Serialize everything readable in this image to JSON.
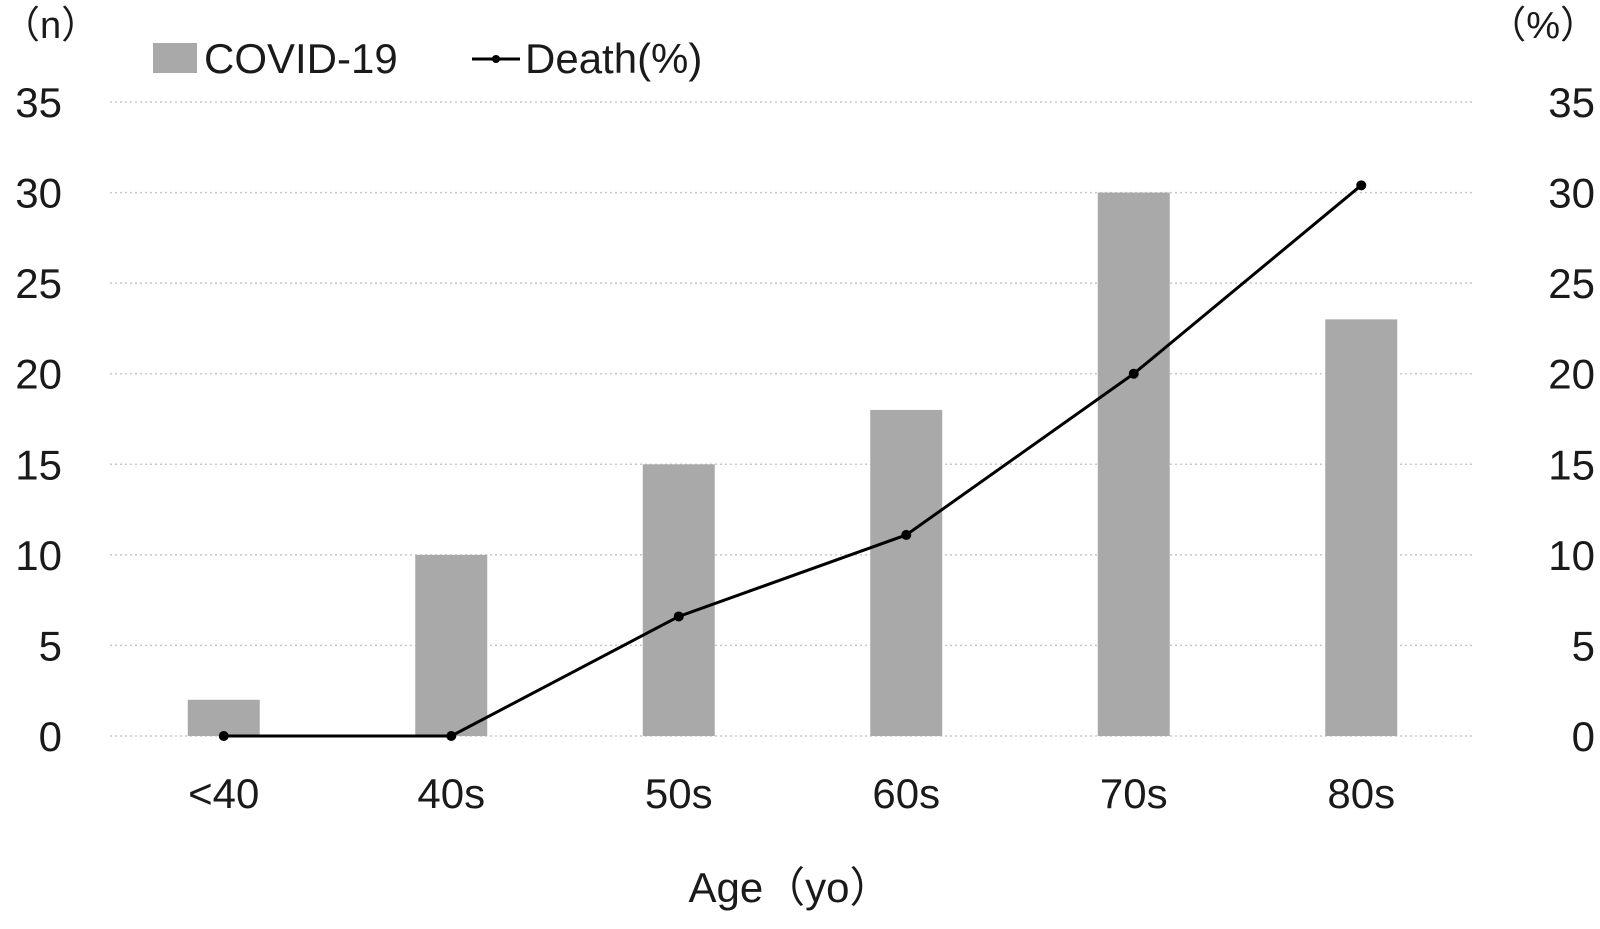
{
  "chart_data": {
    "type": "bar",
    "categories": [
      "<40",
      "40s",
      "50s",
      "60s",
      "70s",
      "80s"
    ],
    "series": [
      {
        "name": "COVID-19",
        "type": "bar",
        "axis": "left",
        "values": [
          2,
          10,
          15,
          18,
          30,
          23
        ]
      },
      {
        "name": "Death(%)",
        "type": "line",
        "axis": "right",
        "values": [
          0,
          0,
          6.6,
          11.1,
          20,
          30.4
        ]
      }
    ],
    "xlabel": "Age（yo）",
    "ylabel_left": "（n）",
    "ylabel_right": "（%）",
    "ylim": [
      0,
      35
    ],
    "y_ticks": [
      0,
      5,
      10,
      15,
      20,
      25,
      30,
      35
    ],
    "grid": true,
    "legend_position": "top-left",
    "colors": {
      "bar": "#a9a9a9",
      "line": "#000000",
      "grid": "#c8c8c8"
    }
  }
}
